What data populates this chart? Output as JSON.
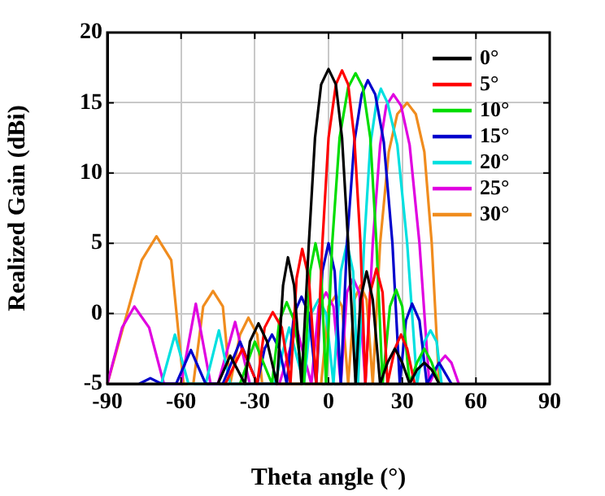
{
  "chart_data": {
    "type": "line",
    "xlabel": "Theta angle (°)",
    "ylabel": "Realized Gain (dBi)",
    "xlim": [
      -90,
      90
    ],
    "xticks": [
      -90,
      -60,
      -30,
      0,
      30,
      60,
      90
    ],
    "ylim": [
      -5,
      20
    ],
    "yticks": [
      -5,
      0,
      5,
      10,
      15,
      20
    ],
    "grid": true,
    "legend": "top right",
    "marker": "none",
    "line_style": "solid",
    "series": [
      {
        "name": "0°",
        "color": "#000000",
        "x": [
          -45,
          -40,
          -34,
          -32,
          -28.5,
          -25,
          -21,
          -18.5,
          -16.5,
          -14,
          -11,
          -8,
          -5.5,
          -3,
          0,
          3,
          5.5,
          8,
          11,
          13,
          15.5,
          18,
          21,
          24,
          27,
          30,
          33,
          36,
          39,
          42,
          45
        ],
        "values": [
          -5,
          -3,
          -5,
          -2,
          -0.7,
          -2,
          -5,
          2,
          4,
          2,
          -5,
          5,
          12.5,
          16.3,
          17.4,
          16.3,
          12.5,
          5,
          -5,
          1,
          3,
          1,
          -5,
          -3.5,
          -2.5,
          -3.5,
          -5,
          -4,
          -3.5,
          -4,
          -5
        ]
      },
      {
        "name": "5°",
        "color": "#ff0000",
        "x": [
          -42,
          -35,
          -29,
          -26,
          -22.7,
          -19,
          -15.5,
          -13,
          -10.7,
          -8,
          -5,
          -2.5,
          0,
          3,
          5.5,
          8,
          10.5,
          13,
          15,
          17,
          19.5,
          22,
          24,
          27,
          29.5,
          32,
          35
        ],
        "values": [
          -5,
          -2.5,
          -5,
          -1,
          0.1,
          -1,
          -5,
          2.5,
          4.6,
          2.5,
          -5,
          5,
          12.5,
          16.3,
          17.3,
          16.3,
          12.5,
          5,
          -5,
          1.5,
          3.2,
          1.5,
          -5,
          -2.5,
          -1.5,
          -2.5,
          -5
        ]
      },
      {
        "name": "10°",
        "color": "#00dd00",
        "x": [
          -36,
          -30,
          -23,
          -20,
          -17,
          -14,
          -10,
          -7.5,
          -5.3,
          -3,
          -1,
          1.5,
          4.5,
          8,
          11,
          14,
          17,
          19.5,
          22,
          25,
          27.5,
          30,
          33,
          36,
          39,
          42,
          45
        ],
        "values": [
          -5,
          -2,
          -5,
          -0.5,
          0.8,
          -0.5,
          -5,
          3,
          5,
          3,
          -5,
          5,
          12.5,
          16.1,
          17.1,
          16.1,
          12.5,
          5,
          -5,
          0.5,
          1.7,
          0.5,
          -5,
          -3.5,
          -2.5,
          -3.5,
          -5
        ]
      },
      {
        "name": "15°",
        "color": "#0000cc",
        "x": [
          -77,
          -72.5,
          -68,
          -62,
          -56,
          -50,
          -43,
          -36,
          -29,
          -26,
          -23,
          -20,
          -17,
          -14,
          -11,
          -8,
          -5,
          -2.5,
          0,
          2.5,
          5,
          7.5,
          10.5,
          13.5,
          16,
          19,
          22.5,
          26,
          29,
          31.5,
          34,
          37,
          40,
          45,
          50
        ],
        "values": [
          -5,
          -4.6,
          -5,
          -5,
          -2.6,
          -5,
          -5,
          -2,
          -5,
          -2.5,
          -1.5,
          -2.5,
          -5,
          0,
          1.2,
          0,
          -5,
          3,
          5,
          3,
          -5,
          5,
          12.2,
          15.6,
          16.6,
          15.6,
          12.2,
          5,
          -5,
          -0.5,
          0.7,
          -0.5,
          -5,
          -3.5,
          -5
        ]
      },
      {
        "name": "20°",
        "color": "#00e0e0",
        "x": [
          -68,
          -62.5,
          -57,
          -50,
          -44.6,
          -40,
          -22,
          -16,
          -10,
          -7,
          -4,
          -1,
          2,
          5,
          7.5,
          10,
          12,
          14.5,
          17,
          19.5,
          21.3,
          24,
          28,
          32,
          36,
          39,
          41.5,
          44,
          46
        ],
        "values": [
          -5,
          -1.5,
          -5,
          -5,
          -1.2,
          -5,
          -5,
          -1,
          -5,
          0,
          1,
          0,
          -5,
          3,
          5,
          3,
          -5,
          5,
          12,
          15,
          16,
          15,
          12,
          5,
          -5,
          -2,
          -1.2,
          -2,
          -5
        ]
      },
      {
        "name": "25°",
        "color": "#e000e0",
        "x": [
          -90,
          -84,
          -79,
          -73,
          -67,
          -60,
          -54,
          -48,
          -45,
          -38,
          -32,
          -20,
          -13,
          -7,
          -4,
          -1,
          2,
          5,
          7.5,
          10,
          12.5,
          15,
          18,
          21,
          23.5,
          26.4,
          29.5,
          33,
          37,
          41,
          45,
          47.5,
          50,
          53
        ],
        "values": [
          -5,
          -1,
          0.5,
          -1,
          -5,
          -5,
          0.7,
          -5,
          -5,
          -0.6,
          -5,
          -5,
          -1,
          -5,
          0.5,
          1.5,
          0.5,
          -5,
          1.5,
          2.5,
          1.5,
          -5,
          5,
          12,
          14.8,
          15.6,
          14.8,
          12,
          5,
          -5,
          -3.5,
          -3,
          -3.5,
          -5
        ]
      },
      {
        "name": "30°",
        "color": "#f08c1e",
        "x": [
          -90,
          -82,
          -76,
          -70,
          -64,
          -59,
          -55,
          -51,
          -47,
          -43,
          -40,
          -36,
          -32.6,
          -29,
          -27,
          -3,
          0,
          3,
          5.5,
          8,
          10.5,
          13,
          15.5,
          18,
          21,
          24.5,
          28,
          32,
          35.5,
          39,
          42,
          45
        ],
        "values": [
          -5,
          0,
          3.8,
          5.5,
          3.8,
          -5,
          -5,
          0.5,
          1.6,
          0.5,
          -5,
          -1.5,
          -0.3,
          -1.5,
          -5,
          -5,
          0.5,
          1.3,
          0.5,
          -5,
          1,
          2,
          1,
          -5,
          5,
          11.5,
          14.2,
          15,
          14.2,
          11.5,
          5,
          -5
        ]
      }
    ]
  }
}
